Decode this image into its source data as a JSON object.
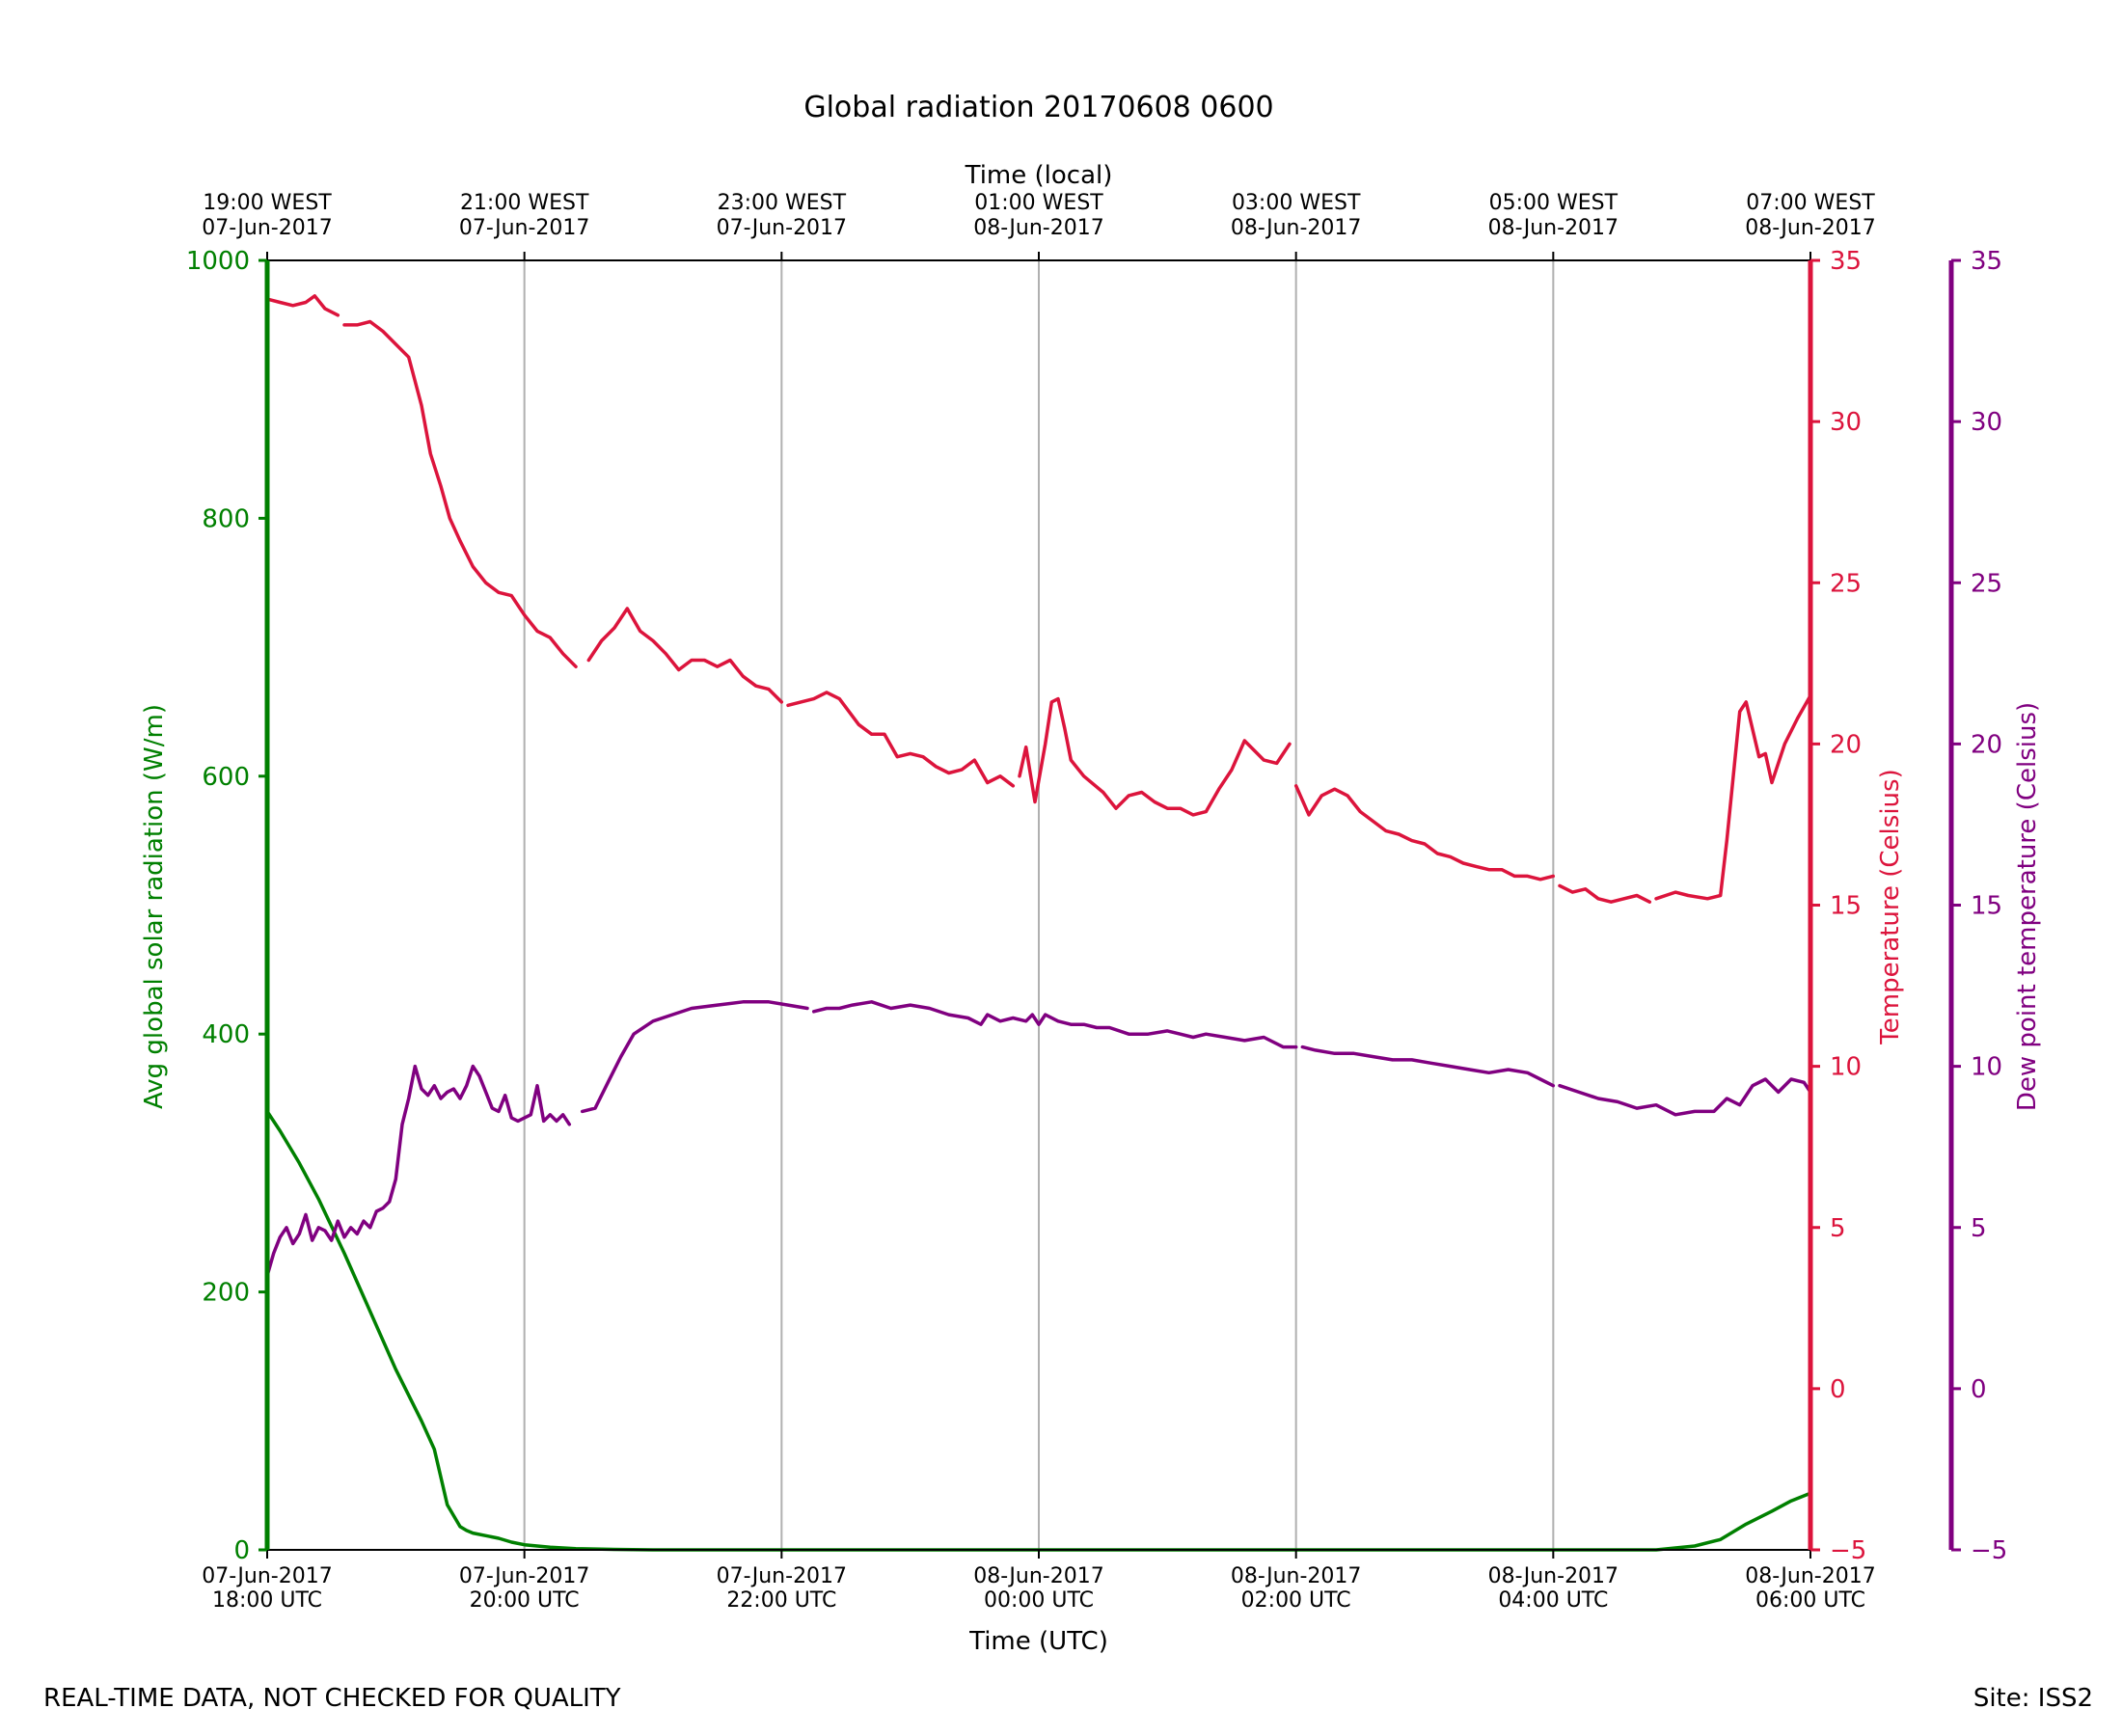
{
  "footer": {
    "quality_note": "REAL-TIME DATA, NOT CHECKED FOR QUALITY",
    "site": "Site: ISS2"
  },
  "colors": {
    "radiation": "#008000",
    "temperature": "#dc143c",
    "dewpoint": "#800080",
    "grid": "#b0b0b0"
  },
  "chart_data": {
    "type": "line",
    "title": "Global radiation 20170608 0600",
    "xlabel": "Time (UTC)",
    "xlabel_top": "Time (local)",
    "grid": "vertical",
    "xlim_hours": [
      0,
      12
    ],
    "x_ticks_bottom": [
      {
        "hour": 0,
        "l1": "07-Jun-2017",
        "l2": "18:00 UTC"
      },
      {
        "hour": 2,
        "l1": "07-Jun-2017",
        "l2": "20:00 UTC"
      },
      {
        "hour": 4,
        "l1": "07-Jun-2017",
        "l2": "22:00 UTC"
      },
      {
        "hour": 6,
        "l1": "08-Jun-2017",
        "l2": "00:00 UTC"
      },
      {
        "hour": 8,
        "l1": "08-Jun-2017",
        "l2": "02:00 UTC"
      },
      {
        "hour": 10,
        "l1": "08-Jun-2017",
        "l2": "04:00 UTC"
      },
      {
        "hour": 12,
        "l1": "08-Jun-2017",
        "l2": "06:00 UTC"
      }
    ],
    "x_ticks_top": [
      {
        "hour": 0,
        "l1": "19:00 WEST",
        "l2": "07-Jun-2017"
      },
      {
        "hour": 2,
        "l1": "21:00 WEST",
        "l2": "07-Jun-2017"
      },
      {
        "hour": 4,
        "l1": "23:00 WEST",
        "l2": "07-Jun-2017"
      },
      {
        "hour": 6,
        "l1": "01:00 WEST",
        "l2": "08-Jun-2017"
      },
      {
        "hour": 8,
        "l1": "03:00 WEST",
        "l2": "08-Jun-2017"
      },
      {
        "hour": 10,
        "l1": "05:00 WEST",
        "l2": "08-Jun-2017"
      },
      {
        "hour": 12,
        "l1": "07:00 WEST",
        "l2": "08-Jun-2017"
      }
    ],
    "axes": {
      "radiation": {
        "label": "Avg global solar radiation (W/m)",
        "ylim": [
          0,
          1000
        ],
        "ticks": [
          0,
          200,
          400,
          600,
          800,
          1000
        ]
      },
      "temperature": {
        "label": "Temperature (Celsius)",
        "ylim": [
          -5,
          35
        ],
        "ticks": [
          -5,
          0,
          5,
          10,
          15,
          20,
          25,
          30,
          35
        ]
      },
      "dewpoint": {
        "label": "Dew point temperature (Celsius)",
        "ylim": [
          -5,
          35
        ],
        "ticks": [
          -5,
          0,
          5,
          10,
          15,
          20,
          25,
          30,
          35
        ]
      }
    },
    "series": [
      {
        "key": "radiation",
        "axis": "radiation",
        "segments": [
          {
            "x": [
              0,
              0.1,
              0.25,
              0.4,
              0.6,
              0.8,
              1.0,
              1.2,
              1.3,
              1.4,
              1.5,
              1.55,
              1.6,
              1.7,
              1.8,
              1.9,
              2.0,
              2.2,
              2.4,
              2.6,
              3.0,
              4.0,
              6.0,
              8.0,
              10.0,
              10.8,
              11.1,
              11.3,
              11.5,
              11.7,
              11.85,
              12.0
            ],
            "y": [
              340,
              325,
              300,
              272,
              230,
              185,
              140,
              100,
              78,
              35,
              18,
              15,
              13,
              11,
              9,
              6,
              4,
              2,
              1,
              0.5,
              0,
              0,
              0,
              0,
              0,
              0,
              3,
              8,
              20,
              30,
              38,
              44
            ]
          }
        ]
      },
      {
        "key": "temperature",
        "axis": "temperature",
        "segments": [
          {
            "x": [
              0,
              0.1,
              0.2,
              0.3,
              0.37,
              0.45,
              0.55
            ],
            "y": [
              33.8,
              33.7,
              33.6,
              33.7,
              33.9,
              33.5,
              33.3
            ]
          },
          {
            "x": [
              0.6,
              0.7,
              0.8,
              0.9,
              1.0,
              1.1,
              1.2,
              1.27,
              1.35,
              1.42,
              1.5,
              1.6,
              1.7,
              1.8,
              1.9,
              2.0,
              2.1,
              2.2,
              2.3,
              2.4
            ],
            "y": [
              33.0,
              33.0,
              33.1,
              32.8,
              32.4,
              32.0,
              30.5,
              29.0,
              28.0,
              27.0,
              26.3,
              25.5,
              25.0,
              24.7,
              24.6,
              24.0,
              23.5,
              23.3,
              22.8,
              22.4
            ]
          },
          {
            "x": [
              2.5,
              2.6,
              2.7,
              2.8,
              2.9,
              3.0,
              3.1,
              3.2,
              3.3,
              3.4,
              3.5,
              3.6,
              3.7,
              3.8,
              3.9,
              4.0
            ],
            "y": [
              22.6,
              23.2,
              23.6,
              24.2,
              23.5,
              23.2,
              22.8,
              22.3,
              22.6,
              22.6,
              22.4,
              22.6,
              22.1,
              21.8,
              21.7,
              21.3
            ]
          },
          {
            "x": [
              4.05,
              4.15,
              4.25,
              4.35,
              4.45,
              4.6,
              4.7,
              4.8,
              4.9,
              5.0,
              5.1,
              5.2,
              5.3,
              5.4,
              5.5,
              5.6,
              5.7,
              5.8
            ],
            "y": [
              21.2,
              21.3,
              21.4,
              21.6,
              21.4,
              20.6,
              20.3,
              20.3,
              19.6,
              19.7,
              19.6,
              19.3,
              19.1,
              19.2,
              19.5,
              18.8,
              19.0,
              18.7
            ]
          },
          {
            "x": [
              5.85,
              5.9,
              5.97,
              6.05,
              6.1,
              6.15,
              6.2,
              6.25,
              6.35,
              6.5,
              6.6,
              6.7,
              6.8,
              6.9,
              7.0,
              7.1,
              7.2,
              7.3,
              7.4,
              7.5,
              7.6,
              7.75,
              7.85,
              7.95
            ],
            "y": [
              19.0,
              19.9,
              18.2,
              20.0,
              21.3,
              21.4,
              20.5,
              19.5,
              19.0,
              18.5,
              18.0,
              18.4,
              18.5,
              18.2,
              18.0,
              18.0,
              17.8,
              17.9,
              18.6,
              19.2,
              20.1,
              19.5,
              19.4,
              20.0
            ]
          },
          {
            "x": [
              8.0,
              8.1,
              8.2,
              8.3,
              8.4,
              8.5,
              8.6,
              8.7,
              8.8,
              8.9,
              9.0,
              9.1,
              9.2,
              9.3,
              9.4,
              9.5,
              9.6,
              9.7,
              9.8,
              9.9,
              10.0
            ],
            "y": [
              18.7,
              17.8,
              18.4,
              18.6,
              18.4,
              17.9,
              17.6,
              17.3,
              17.2,
              17.0,
              16.9,
              16.6,
              16.5,
              16.3,
              16.2,
              16.1,
              16.1,
              15.9,
              15.9,
              15.8,
              15.9
            ]
          },
          {
            "x": [
              10.05,
              10.15,
              10.25,
              10.35,
              10.45,
              10.55,
              10.65,
              10.75
            ],
            "y": [
              15.6,
              15.4,
              15.5,
              15.2,
              15.1,
              15.2,
              15.3,
              15.1
            ]
          },
          {
            "x": [
              10.8,
              10.95,
              11.05,
              11.2,
              11.3,
              11.35,
              11.4,
              11.45,
              11.5,
              11.6,
              11.65,
              11.7,
              11.8,
              11.9,
              12.0
            ],
            "y": [
              15.2,
              15.4,
              15.3,
              15.2,
              15.3,
              17.0,
              19.0,
              21.0,
              21.3,
              19.6,
              19.7,
              18.8,
              20.0,
              20.8,
              21.5
            ]
          }
        ]
      },
      {
        "key": "dewpoint",
        "axis": "dewpoint",
        "segments": [
          {
            "x": [
              0,
              0.05,
              0.1,
              0.15,
              0.2,
              0.25,
              0.3,
              0.35,
              0.4,
              0.45,
              0.5,
              0.55,
              0.6,
              0.65,
              0.7,
              0.75,
              0.8,
              0.85,
              0.9,
              0.95,
              1.0,
              1.05,
              1.1,
              1.15,
              1.2,
              1.25,
              1.3,
              1.35,
              1.4,
              1.45,
              1.5,
              1.55,
              1.6,
              1.65,
              1.7,
              1.75,
              1.8,
              1.85,
              1.9,
              1.95,
              2.0,
              2.05,
              2.1,
              2.15,
              2.2,
              2.25,
              2.3,
              2.35
            ],
            "y": [
              3.5,
              4.2,
              4.7,
              5.0,
              4.5,
              4.8,
              5.4,
              4.6,
              5.0,
              4.9,
              4.6,
              5.2,
              4.7,
              5.0,
              4.8,
              5.2,
              5.0,
              5.5,
              5.6,
              5.8,
              6.5,
              8.2,
              9.0,
              10.0,
              9.3,
              9.1,
              9.4,
              9.0,
              9.2,
              9.3,
              9.0,
              9.4,
              10.0,
              9.7,
              9.2,
              8.7,
              8.6,
              9.1,
              8.4,
              8.3,
              8.4,
              8.5,
              9.4,
              8.3,
              8.5,
              8.3,
              8.5,
              8.2
            ]
          },
          {
            "x": [
              2.45,
              2.55,
              2.65,
              2.75,
              2.85,
              3.0,
              3.15,
              3.3,
              3.5,
              3.7,
              3.9,
              4.05,
              4.2
            ],
            "y": [
              8.6,
              8.7,
              9.5,
              10.3,
              11.0,
              11.4,
              11.6,
              11.8,
              11.9,
              12.0,
              12.0,
              11.9,
              11.8
            ]
          },
          {
            "x": [
              4.25,
              4.35,
              4.45,
              4.55,
              4.7,
              4.85,
              5.0,
              5.15,
              5.3,
              5.45,
              5.55,
              5.6,
              5.7,
              5.8,
              5.9,
              5.95,
              6.0,
              6.05,
              6.15,
              6.25,
              6.35,
              6.45,
              6.55,
              6.7,
              6.85,
              7.0,
              7.1,
              7.2,
              7.3,
              7.45,
              7.6,
              7.75,
              7.9,
              8.0
            ],
            "y": [
              11.7,
              11.8,
              11.8,
              11.9,
              12.0,
              11.8,
              11.9,
              11.8,
              11.6,
              11.5,
              11.3,
              11.6,
              11.4,
              11.5,
              11.4,
              11.6,
              11.3,
              11.6,
              11.4,
              11.3,
              11.3,
              11.2,
              11.2,
              11.0,
              11.0,
              11.1,
              11.0,
              10.9,
              11.0,
              10.9,
              10.8,
              10.9,
              10.6,
              10.6
            ]
          },
          {
            "x": [
              8.05,
              8.15,
              8.3,
              8.45,
              8.6,
              8.75,
              8.9,
              9.05,
              9.2,
              9.35,
              9.5,
              9.65,
              9.8,
              9.9,
              10.0
            ],
            "y": [
              10.6,
              10.5,
              10.4,
              10.4,
              10.3,
              10.2,
              10.2,
              10.1,
              10.0,
              9.9,
              9.8,
              9.9,
              9.8,
              9.6,
              9.4
            ]
          },
          {
            "x": [
              10.05,
              10.2,
              10.35,
              10.5,
              10.65,
              10.8,
              10.95,
              11.1,
              11.25,
              11.35,
              11.45,
              11.55,
              11.65,
              11.75,
              11.85,
              11.95,
              12.0
            ],
            "y": [
              9.4,
              9.2,
              9.0,
              8.9,
              8.7,
              8.8,
              8.5,
              8.6,
              8.6,
              9.0,
              8.8,
              9.4,
              9.6,
              9.2,
              9.6,
              9.5,
              9.2
            ]
          }
        ]
      }
    ]
  }
}
